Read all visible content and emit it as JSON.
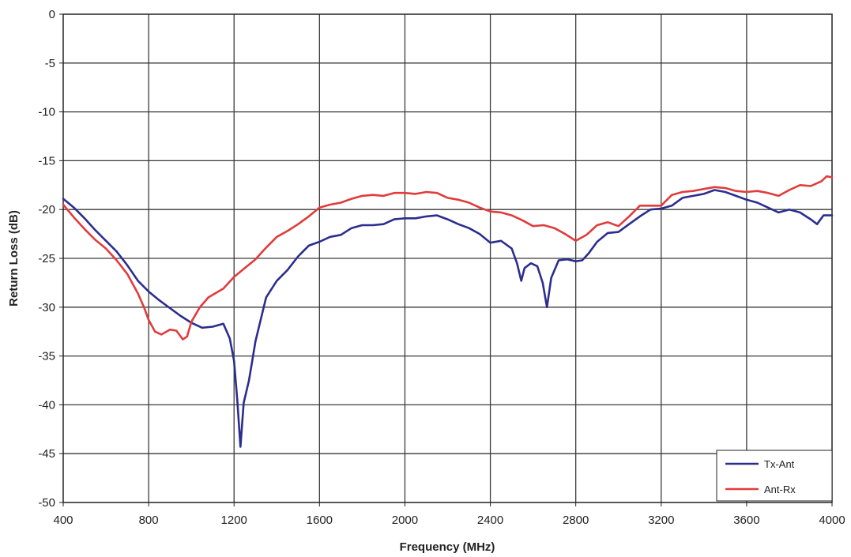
{
  "chart_data": {
    "type": "line",
    "title": "",
    "xlabel": "Frequency (MHz)",
    "ylabel": "Return Loss (dB)",
    "xlim": [
      400,
      4000
    ],
    "ylim": [
      -50,
      0
    ],
    "x_ticks": [
      400,
      800,
      1200,
      1600,
      2000,
      2400,
      2800,
      3200,
      3600,
      4000
    ],
    "x_tick_labels": [
      "400",
      "800",
      "1200",
      "1600",
      "2000",
      "2400",
      "2800",
      "3200",
      "3600",
      "4000"
    ],
    "y_ticks": [
      0,
      -5,
      -10,
      -15,
      -20,
      -25,
      -30,
      -35,
      -40,
      -45,
      -50
    ],
    "y_tick_labels": [
      "0",
      "-5",
      "-10",
      "-15",
      "-20",
      "-25",
      "-30",
      "-35",
      "-40",
      "-45",
      "-50"
    ],
    "grid": true,
    "legend_position": "bottom-right",
    "series": [
      {
        "name": "Tx-Ant",
        "color": "#2c2e8e",
        "points": [
          [
            400,
            -18.9
          ],
          [
            450,
            -19.8
          ],
          [
            500,
            -20.9
          ],
          [
            550,
            -22.1
          ],
          [
            600,
            -23.2
          ],
          [
            650,
            -24.3
          ],
          [
            700,
            -25.7
          ],
          [
            750,
            -27.3
          ],
          [
            800,
            -28.4
          ],
          [
            850,
            -29.3
          ],
          [
            900,
            -30.1
          ],
          [
            950,
            -30.9
          ],
          [
            1000,
            -31.6
          ],
          [
            1050,
            -32.1
          ],
          [
            1100,
            -32.0
          ],
          [
            1150,
            -31.7
          ],
          [
            1180,
            -33.2
          ],
          [
            1200,
            -35.5
          ],
          [
            1215,
            -39.5
          ],
          [
            1230,
            -44.3
          ],
          [
            1245,
            -39.8
          ],
          [
            1270,
            -37.5
          ],
          [
            1300,
            -33.5
          ],
          [
            1350,
            -29.0
          ],
          [
            1400,
            -27.3
          ],
          [
            1450,
            -26.2
          ],
          [
            1500,
            -24.8
          ],
          [
            1550,
            -23.7
          ],
          [
            1600,
            -23.3
          ],
          [
            1650,
            -22.8
          ],
          [
            1700,
            -22.6
          ],
          [
            1750,
            -21.9
          ],
          [
            1800,
            -21.6
          ],
          [
            1850,
            -21.6
          ],
          [
            1900,
            -21.5
          ],
          [
            1950,
            -21.0
          ],
          [
            2000,
            -20.9
          ],
          [
            2050,
            -20.9
          ],
          [
            2100,
            -20.7
          ],
          [
            2150,
            -20.6
          ],
          [
            2200,
            -21.0
          ],
          [
            2250,
            -21.5
          ],
          [
            2300,
            -21.9
          ],
          [
            2350,
            -22.5
          ],
          [
            2400,
            -23.4
          ],
          [
            2450,
            -23.2
          ],
          [
            2500,
            -24.0
          ],
          [
            2525,
            -25.5
          ],
          [
            2545,
            -27.3
          ],
          [
            2560,
            -26.0
          ],
          [
            2590,
            -25.5
          ],
          [
            2620,
            -25.8
          ],
          [
            2645,
            -27.5
          ],
          [
            2665,
            -30.0
          ],
          [
            2685,
            -27.0
          ],
          [
            2720,
            -25.2
          ],
          [
            2760,
            -25.1
          ],
          [
            2800,
            -25.3
          ],
          [
            2830,
            -25.2
          ],
          [
            2860,
            -24.5
          ],
          [
            2900,
            -23.3
          ],
          [
            2950,
            -22.4
          ],
          [
            3000,
            -22.3
          ],
          [
            3050,
            -21.5
          ],
          [
            3100,
            -20.7
          ],
          [
            3150,
            -20.0
          ],
          [
            3200,
            -19.9
          ],
          [
            3250,
            -19.6
          ],
          [
            3300,
            -18.8
          ],
          [
            3350,
            -18.6
          ],
          [
            3400,
            -18.4
          ],
          [
            3450,
            -18.0
          ],
          [
            3500,
            -18.2
          ],
          [
            3550,
            -18.6
          ],
          [
            3600,
            -19.0
          ],
          [
            3650,
            -19.3
          ],
          [
            3700,
            -19.8
          ],
          [
            3750,
            -20.3
          ],
          [
            3800,
            -20.0
          ],
          [
            3850,
            -20.3
          ],
          [
            3900,
            -21.0
          ],
          [
            3930,
            -21.5
          ],
          [
            3960,
            -20.6
          ],
          [
            4000,
            -20.6
          ]
        ]
      },
      {
        "name": "Ant-Rx",
        "color": "#e03c3c",
        "points": [
          [
            400,
            -19.5
          ],
          [
            450,
            -20.8
          ],
          [
            500,
            -22.0
          ],
          [
            550,
            -23.1
          ],
          [
            600,
            -24.0
          ],
          [
            650,
            -25.2
          ],
          [
            700,
            -26.6
          ],
          [
            750,
            -28.6
          ],
          [
            780,
            -30.1
          ],
          [
            800,
            -31.3
          ],
          [
            830,
            -32.5
          ],
          [
            860,
            -32.8
          ],
          [
            900,
            -32.3
          ],
          [
            930,
            -32.4
          ],
          [
            960,
            -33.3
          ],
          [
            980,
            -33.0
          ],
          [
            1000,
            -31.5
          ],
          [
            1040,
            -30.0
          ],
          [
            1080,
            -29.0
          ],
          [
            1150,
            -28.1
          ],
          [
            1200,
            -26.9
          ],
          [
            1250,
            -26.0
          ],
          [
            1300,
            -25.1
          ],
          [
            1350,
            -23.9
          ],
          [
            1400,
            -22.8
          ],
          [
            1450,
            -22.2
          ],
          [
            1500,
            -21.5
          ],
          [
            1550,
            -20.7
          ],
          [
            1600,
            -19.8
          ],
          [
            1650,
            -19.5
          ],
          [
            1700,
            -19.3
          ],
          [
            1750,
            -18.9
          ],
          [
            1800,
            -18.6
          ],
          [
            1850,
            -18.5
          ],
          [
            1900,
            -18.6
          ],
          [
            1950,
            -18.3
          ],
          [
            2000,
            -18.3
          ],
          [
            2050,
            -18.4
          ],
          [
            2100,
            -18.2
          ],
          [
            2150,
            -18.3
          ],
          [
            2200,
            -18.8
          ],
          [
            2250,
            -19.0
          ],
          [
            2300,
            -19.3
          ],
          [
            2350,
            -19.8
          ],
          [
            2400,
            -20.2
          ],
          [
            2450,
            -20.3
          ],
          [
            2500,
            -20.6
          ],
          [
            2550,
            -21.1
          ],
          [
            2600,
            -21.7
          ],
          [
            2650,
            -21.6
          ],
          [
            2700,
            -21.9
          ],
          [
            2750,
            -22.5
          ],
          [
            2800,
            -23.2
          ],
          [
            2850,
            -22.6
          ],
          [
            2900,
            -21.6
          ],
          [
            2950,
            -21.3
          ],
          [
            3000,
            -21.7
          ],
          [
            3050,
            -20.7
          ],
          [
            3100,
            -19.6
          ],
          [
            3150,
            -19.6
          ],
          [
            3200,
            -19.6
          ],
          [
            3250,
            -18.5
          ],
          [
            3300,
            -18.2
          ],
          [
            3350,
            -18.1
          ],
          [
            3400,
            -17.9
          ],
          [
            3450,
            -17.7
          ],
          [
            3500,
            -17.8
          ],
          [
            3550,
            -18.1
          ],
          [
            3600,
            -18.2
          ],
          [
            3650,
            -18.1
          ],
          [
            3700,
            -18.3
          ],
          [
            3750,
            -18.6
          ],
          [
            3800,
            -18.0
          ],
          [
            3850,
            -17.5
          ],
          [
            3900,
            -17.6
          ],
          [
            3950,
            -17.1
          ],
          [
            3975,
            -16.6
          ],
          [
            4000,
            -16.7
          ]
        ]
      }
    ]
  }
}
